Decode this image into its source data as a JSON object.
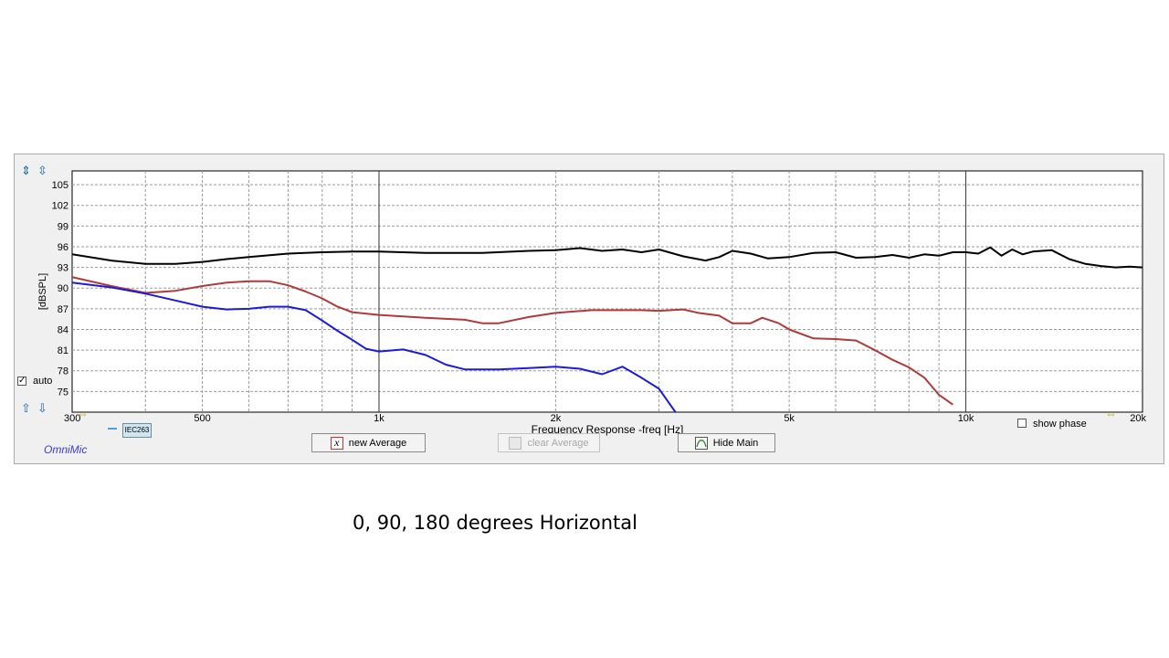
{
  "app": {
    "brand": "OmniMic"
  },
  "chart_data": {
    "type": "line",
    "xscale": "log",
    "xlabel": "Frequency Response -freq [Hz]",
    "ylabel": "[dBSPL]",
    "xlim": [
      300,
      20000
    ],
    "ylim": [
      72,
      107
    ],
    "yticks": [
      75,
      78,
      81,
      84,
      87,
      90,
      93,
      96,
      99,
      102,
      105
    ],
    "xtick_labels": [
      {
        "value": 300,
        "label": "300"
      },
      {
        "value": 500,
        "label": "500"
      },
      {
        "value": 1000,
        "label": "1k"
      },
      {
        "value": 2000,
        "label": "2k"
      },
      {
        "value": 5000,
        "label": "5k"
      },
      {
        "value": 10000,
        "label": "10k"
      },
      {
        "value": 20000,
        "label": "20k"
      }
    ],
    "grid": true,
    "series": [
      {
        "color": "#000000",
        "points": [
          [
            300,
            94.9
          ],
          [
            350,
            94.0
          ],
          [
            400,
            93.5
          ],
          [
            450,
            93.5
          ],
          [
            500,
            93.8
          ],
          [
            550,
            94.2
          ],
          [
            600,
            94.5
          ],
          [
            700,
            95.0
          ],
          [
            800,
            95.2
          ],
          [
            900,
            95.3
          ],
          [
            1000,
            95.3
          ],
          [
            1200,
            95.1
          ],
          [
            1500,
            95.1
          ],
          [
            1800,
            95.4
          ],
          [
            2000,
            95.5
          ],
          [
            2200,
            95.8
          ],
          [
            2400,
            95.4
          ],
          [
            2600,
            95.6
          ],
          [
            2800,
            95.2
          ],
          [
            3000,
            95.6
          ],
          [
            3300,
            94.6
          ],
          [
            3600,
            94.0
          ],
          [
            3800,
            94.5
          ],
          [
            4000,
            95.4
          ],
          [
            4300,
            95.0
          ],
          [
            4600,
            94.3
          ],
          [
            5000,
            94.5
          ],
          [
            5500,
            95.1
          ],
          [
            6000,
            95.2
          ],
          [
            6500,
            94.4
          ],
          [
            7000,
            94.5
          ],
          [
            7500,
            94.8
          ],
          [
            8000,
            94.4
          ],
          [
            8500,
            94.9
          ],
          [
            9000,
            94.7
          ],
          [
            9500,
            95.2
          ],
          [
            10000,
            95.2
          ],
          [
            10500,
            95.0
          ],
          [
            11000,
            95.9
          ],
          [
            11500,
            94.7
          ],
          [
            12000,
            95.6
          ],
          [
            12500,
            94.9
          ],
          [
            13000,
            95.3
          ],
          [
            14000,
            95.5
          ],
          [
            15000,
            94.2
          ],
          [
            16000,
            93.5
          ],
          [
            17000,
            93.2
          ],
          [
            18000,
            93.0
          ],
          [
            19000,
            93.1
          ],
          [
            20000,
            93.0
          ]
        ]
      },
      {
        "color": "#b03a3a",
        "points": [
          [
            300,
            91.6
          ],
          [
            350,
            90.3
          ],
          [
            400,
            89.3
          ],
          [
            450,
            89.6
          ],
          [
            500,
            90.3
          ],
          [
            550,
            90.8
          ],
          [
            600,
            91.0
          ],
          [
            650,
            91.0
          ],
          [
            700,
            90.4
          ],
          [
            750,
            89.5
          ],
          [
            800,
            88.5
          ],
          [
            850,
            87.3
          ],
          [
            900,
            86.5
          ],
          [
            1000,
            86.1
          ],
          [
            1100,
            85.9
          ],
          [
            1200,
            85.7
          ],
          [
            1400,
            85.4
          ],
          [
            1500,
            84.9
          ],
          [
            1600,
            84.9
          ],
          [
            1800,
            85.8
          ],
          [
            2000,
            86.4
          ],
          [
            2300,
            86.8
          ],
          [
            2500,
            86.8
          ],
          [
            2800,
            86.8
          ],
          [
            3000,
            86.7
          ],
          [
            3300,
            86.9
          ],
          [
            3500,
            86.4
          ],
          [
            3800,
            86.0
          ],
          [
            4000,
            84.9
          ],
          [
            4300,
            84.9
          ],
          [
            4500,
            85.7
          ],
          [
            4800,
            84.9
          ],
          [
            5000,
            84.0
          ],
          [
            5500,
            82.7
          ],
          [
            6000,
            82.6
          ],
          [
            6500,
            82.4
          ],
          [
            7000,
            81.0
          ],
          [
            7500,
            79.6
          ],
          [
            8000,
            78.5
          ],
          [
            8500,
            77.0
          ],
          [
            9000,
            74.5
          ],
          [
            9500,
            73.1
          ]
        ]
      },
      {
        "color": "#1a1ae0",
        "points": [
          [
            300,
            90.8
          ],
          [
            350,
            90.1
          ],
          [
            400,
            89.2
          ],
          [
            450,
            88.2
          ],
          [
            500,
            87.3
          ],
          [
            550,
            86.9
          ],
          [
            600,
            87.0
          ],
          [
            650,
            87.3
          ],
          [
            700,
            87.3
          ],
          [
            750,
            86.8
          ],
          [
            800,
            85.3
          ],
          [
            850,
            83.8
          ],
          [
            900,
            82.5
          ],
          [
            950,
            81.2
          ],
          [
            1000,
            80.8
          ],
          [
            1100,
            81.1
          ],
          [
            1200,
            80.3
          ],
          [
            1300,
            78.9
          ],
          [
            1400,
            78.2
          ],
          [
            1600,
            78.2
          ],
          [
            1800,
            78.4
          ],
          [
            2000,
            78.6
          ],
          [
            2200,
            78.3
          ],
          [
            2400,
            77.5
          ],
          [
            2600,
            78.6
          ],
          [
            2800,
            77.0
          ],
          [
            3000,
            75.4
          ],
          [
            3200,
            72.0
          ]
        ]
      }
    ]
  },
  "legend": {
    "tag": "IEC263"
  },
  "controls": {
    "new_average": "new Average",
    "clear_average": "clear Average",
    "hide_main": "Hide Main",
    "auto_label": "auto",
    "auto_checked": true,
    "show_phase_label": "show phase",
    "show_phase_checked": false
  },
  "caption": "0, 90, 180 degrees Horizontal"
}
